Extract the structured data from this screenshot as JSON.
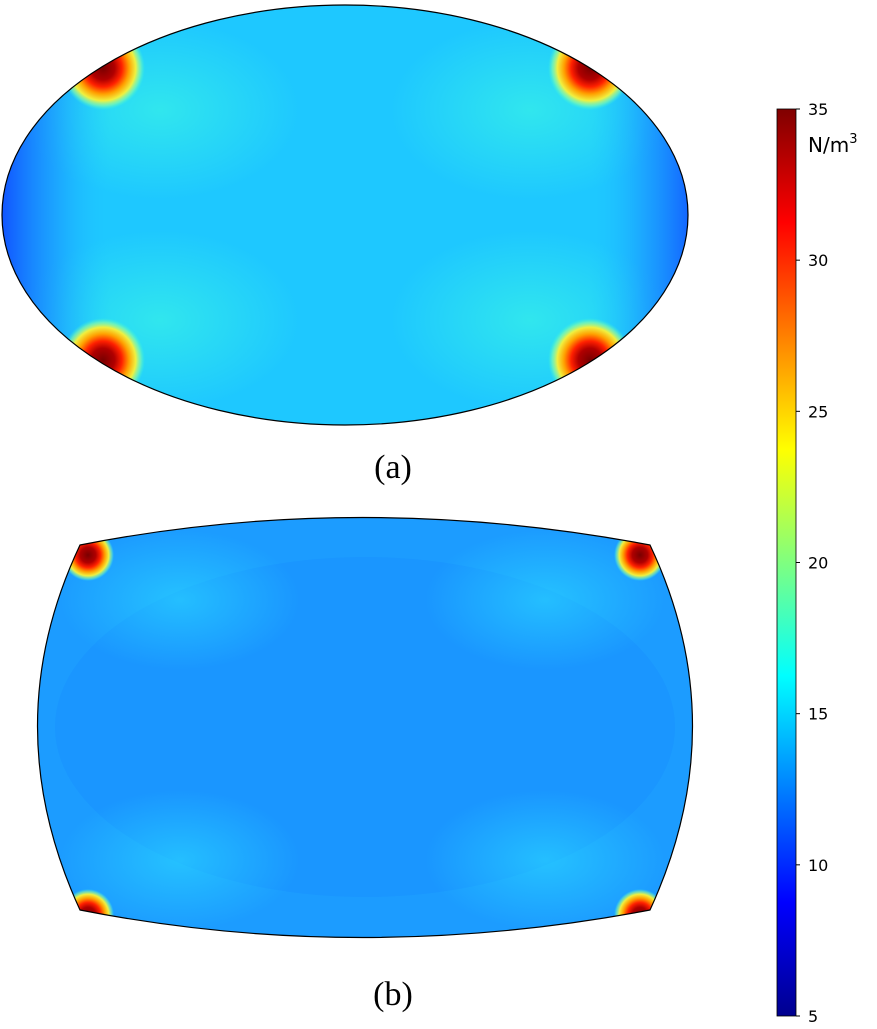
{
  "figure": {
    "panels": [
      {
        "caption": "(a)",
        "shape": "ellipse",
        "background_value": 16.5,
        "hotspots": [
          "top-left",
          "top-right",
          "bottom-left",
          "bottom-right"
        ],
        "hotspot_peak_value": 35,
        "side_minimum_value": 10
      },
      {
        "caption": "(b)",
        "shape": "barrel",
        "background_value": 14,
        "hotspots": [
          "top-left",
          "top-right",
          "bottom-left",
          "bottom-right"
        ],
        "hotspot_peak_value": 35,
        "side_minimum_value": 12
      }
    ],
    "colorbar": {
      "unit_base": "N/m",
      "unit_exponent": "3",
      "min": 5,
      "max": 35,
      "ticks": [
        35,
        30,
        25,
        20,
        15,
        10,
        5
      ],
      "colormap": "rainbow",
      "colors": [
        "#00008f",
        "#0000ff",
        "#0080ff",
        "#00ffff",
        "#80ff80",
        "#ffff00",
        "#ff8000",
        "#ff0000",
        "#800000"
      ]
    }
  }
}
